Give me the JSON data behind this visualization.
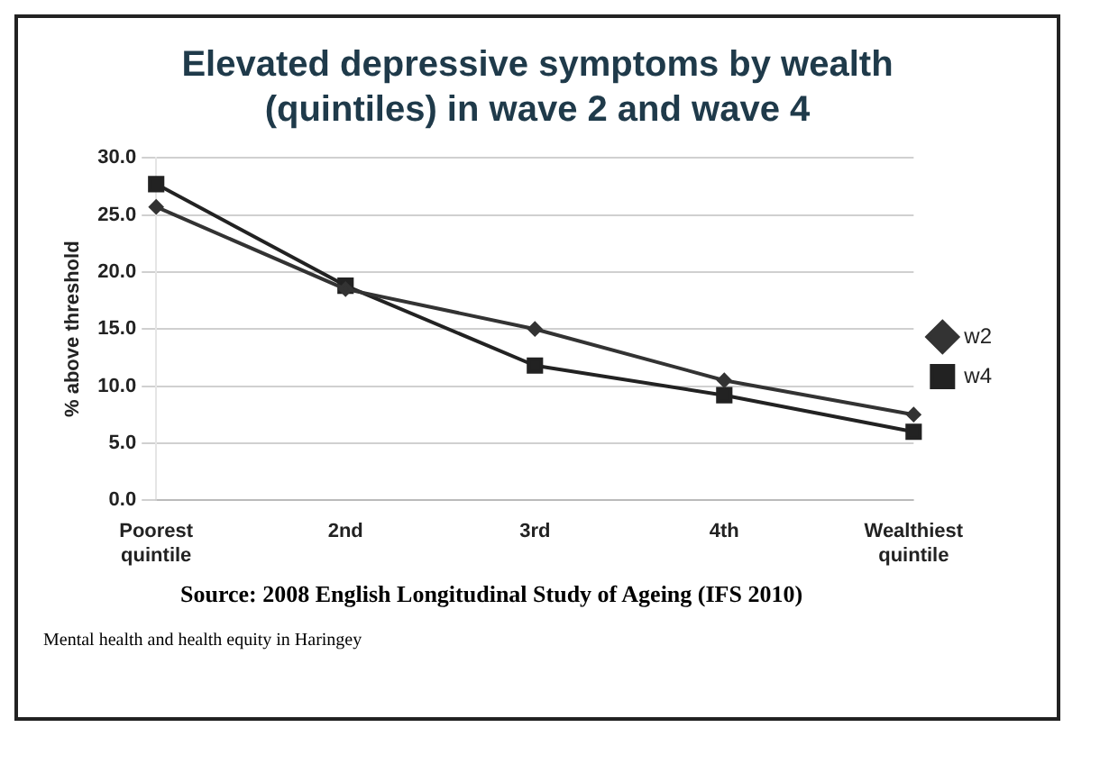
{
  "chart_data": {
    "type": "line",
    "title": "Elevated depressive symptoms by wealth (quintiles) in wave 2 and wave 4",
    "ylabel": "% above threshold",
    "categories": [
      "Poorest quintile",
      "2nd",
      "3rd",
      "4th",
      "Wealthiest quintile"
    ],
    "series": [
      {
        "name": "w2",
        "color": "#333333",
        "marker": "diamond",
        "values": [
          25.7,
          18.5,
          15.0,
          10.5,
          7.5
        ]
      },
      {
        "name": "w4",
        "color": "#222222",
        "marker": "square",
        "values": [
          27.7,
          18.8,
          11.8,
          9.2,
          6.0
        ]
      }
    ],
    "ylim": [
      0,
      30
    ],
    "yticks": [
      {
        "value": 0,
        "label": "0.0"
      },
      {
        "value": 5,
        "label": "5.0"
      },
      {
        "value": 10,
        "label": "10.0"
      },
      {
        "value": 15,
        "label": "15.0"
      },
      {
        "value": 20,
        "label": "20.0"
      },
      {
        "value": 25,
        "label": "25.0"
      },
      {
        "value": 30,
        "label": "30.0"
      }
    ],
    "grid": "y",
    "legend": "right",
    "line_style": "solid",
    "annotations": [
      "Source: 2008 English Longitudinal Study of Ageing (IFS 2010)",
      "Mental health and health equity in Haringey"
    ]
  }
}
